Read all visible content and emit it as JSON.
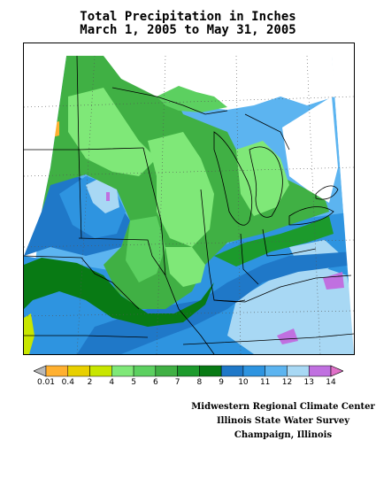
{
  "title_line1": "Total Precipitation in Inches",
  "title_line2": "March 1, 2005 to May 31, 2005",
  "legend": {
    "ticks": [
      "0.01",
      "0.4",
      "2",
      "4",
      "5",
      "6",
      "7",
      "8",
      "9",
      "10",
      "11",
      "12",
      "13",
      "14"
    ],
    "colors": [
      "#b9b9b9",
      "#ffb030",
      "#e8d000",
      "#c8e600",
      "#7fe878",
      "#5cd060",
      "#40b044",
      "#1c9a2c",
      "#087a14",
      "#1f78c8",
      "#2e94e0",
      "#5cb4f0",
      "#a8d8f4",
      "#c070e0",
      "#e070c8"
    ]
  },
  "credits": {
    "line1": "Midwestern Regional Climate Center",
    "line2": "Illinois State Water Survey",
    "line3": "Champaign, Illinois"
  }
}
